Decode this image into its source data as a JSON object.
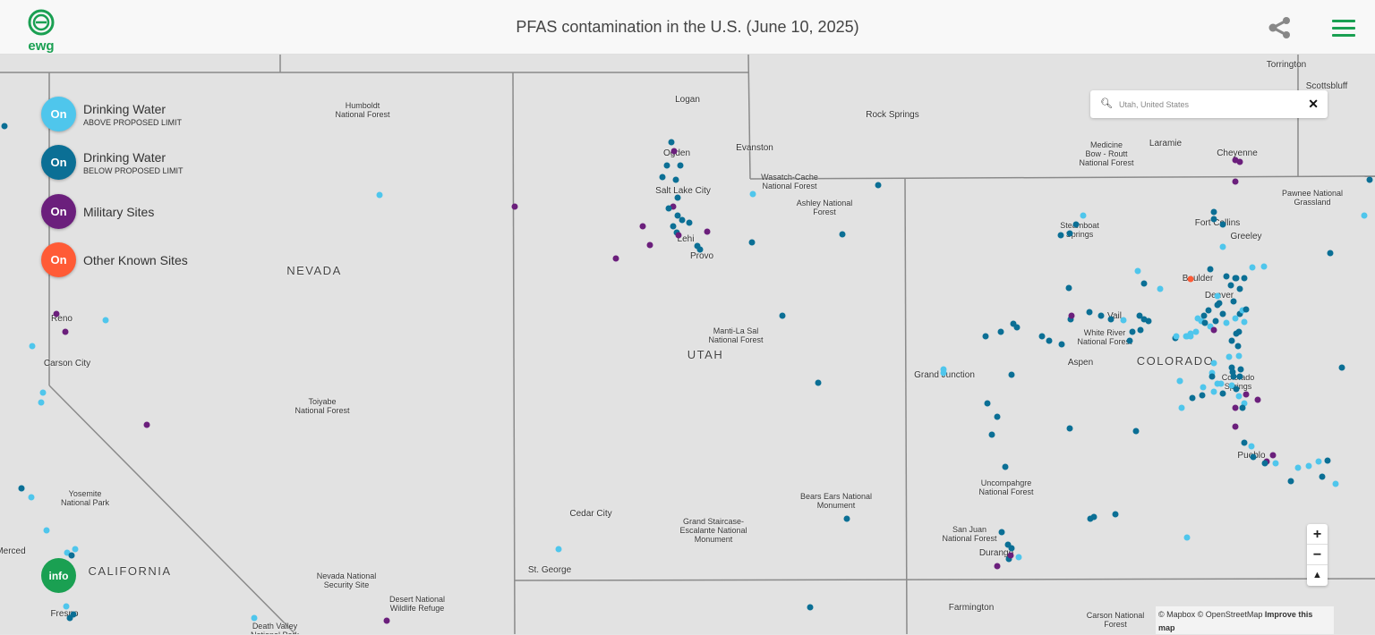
{
  "header": {
    "logo_text": "ewg",
    "title": "PFAS contamination in the U.S. (June 10, 2025)",
    "share_icon": "share-icon",
    "menu_icon": "hamburger-menu-icon"
  },
  "colors": {
    "above_limit": "#4fc6ec",
    "below_limit": "#0b6f95",
    "military": "#6b1f7c",
    "other": "#ff5b36",
    "brand": "#1aa052"
  },
  "legend": [
    {
      "toggle": "On",
      "label": "Drinking Water",
      "sublabel": "ABOVE PROPOSED LIMIT"
    },
    {
      "toggle": "On",
      "label": "Drinking Water",
      "sublabel": "BELOW PROPOSED LIMIT"
    },
    {
      "toggle": "On",
      "label": "Military Sites",
      "sublabel": ""
    },
    {
      "toggle": "On",
      "label": "Other Known Sites",
      "sublabel": ""
    }
  ],
  "search": {
    "placeholder": "Utah, United States",
    "clear": "✕"
  },
  "zoom": {
    "in": "+",
    "out": "−",
    "compass": "▲"
  },
  "attribution": {
    "mapbox": "© Mapbox",
    "osm": "© OpenStreetMap",
    "improve": "Improve this map"
  },
  "info_button": "info",
  "map_labels": [
    "Torrington",
    "Scottsbluff",
    "Humboldt\nNational Forest",
    "Logan",
    "Rock Springs",
    "Ogden",
    "Evanston",
    "Medicine\nBow - Routt\nNational Forest",
    "Laramie",
    "Cheyenne",
    "Wasatch-Cache\nNational Forest",
    "Salt Lake City",
    "Ashley National\nForest",
    "Pawnee National\nGrassland",
    "Steamboat\nSprings",
    "Fort Collins",
    "Greeley",
    "Lehi",
    "Provo",
    "NEVADA",
    "Boulder",
    "Denver",
    "Reno",
    "Vail",
    "White River\nNational Forest",
    "Manti-La Sal\nNational Forest",
    "UTAH",
    "Carson City",
    "COLORADO",
    "Aspen",
    "Grand Junction",
    "Colorado\nSprings",
    "Toiyabe\nNational Forest",
    "Pueblo",
    "Uncompahgre\nNational Forest",
    "Bears Ears National\nMonument",
    "Yosemite\nNational Park",
    "Cedar City",
    "Grand Staircase-\nEscalante National\nMonument",
    "San Juan\nNational Forest",
    "Merced",
    "Durango",
    "CALIFORNIA",
    "St. George",
    "Nevada National\nSecurity Site",
    "Desert National\nWildlife Refuge",
    "Farmington",
    "Fresno",
    "Carson National\nForest",
    "Death Valley\nNational Park"
  ]
}
